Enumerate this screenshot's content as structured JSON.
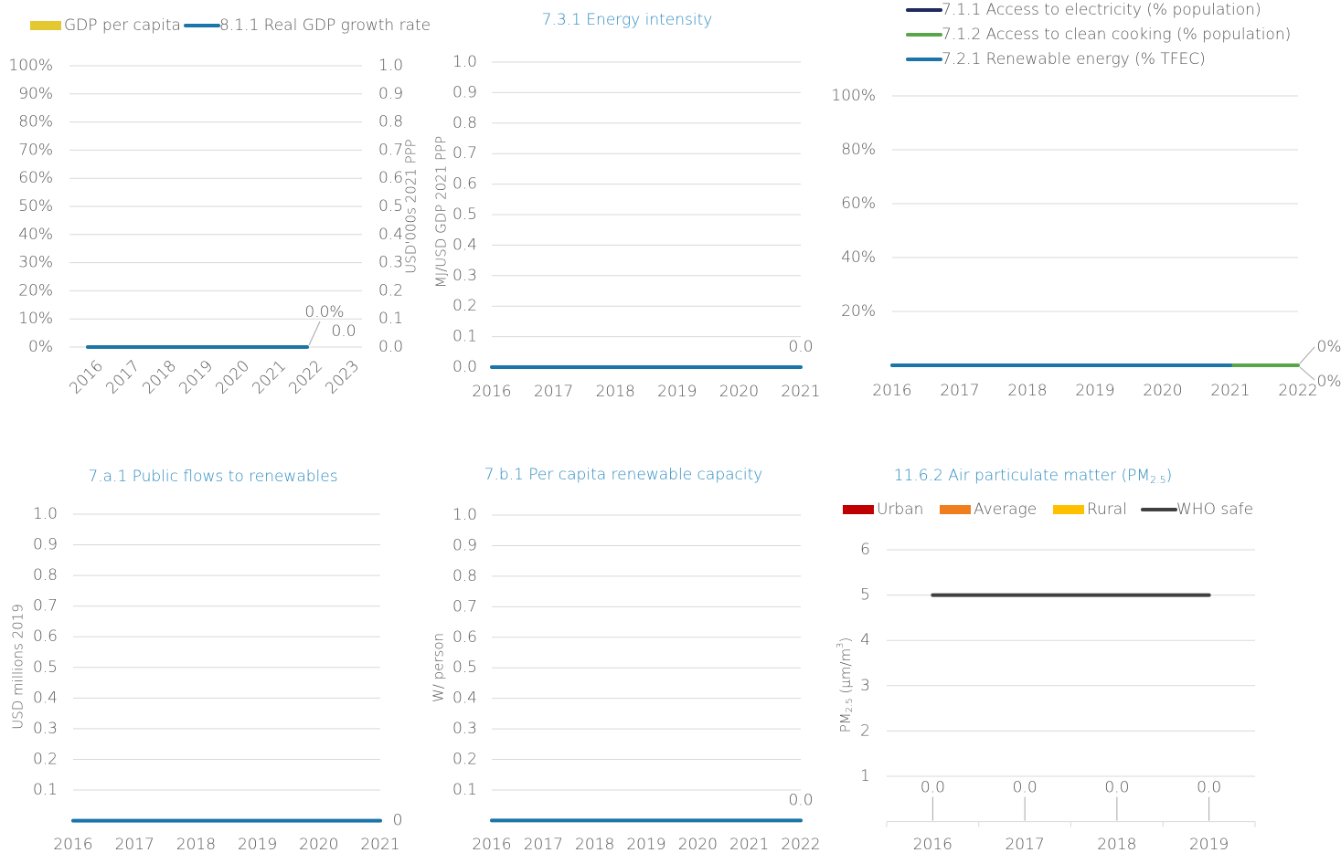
{
  "chart_data": [
    {
      "type": "combo",
      "categories": [
        "2016",
        "2017",
        "2018",
        "2019",
        "2020",
        "2021",
        "2022",
        "2023"
      ],
      "series": [
        {
          "name": "GDP per capita",
          "type": "bar",
          "axis": "y2",
          "color": "#e3c832",
          "values": [
            null,
            null,
            null,
            null,
            null,
            null,
            null,
            0
          ],
          "value_labels": [
            null,
            null,
            null,
            null,
            null,
            null,
            null,
            "0.0"
          ]
        },
        {
          "name": "8.1.1 Real GDP growth rate",
          "type": "line",
          "color": "#1b75a8",
          "values": [
            0,
            0,
            0,
            0,
            0,
            0,
            0,
            null
          ],
          "value_labels": [
            null,
            null,
            null,
            null,
            null,
            null,
            "0.0%",
            null
          ]
        }
      ],
      "ylim": [
        0,
        100
      ],
      "yticks": [
        {
          "value": 0,
          "label": "0%"
        },
        {
          "value": 10,
          "label": "10%"
        },
        {
          "value": 20,
          "label": "20%"
        },
        {
          "value": 30,
          "label": "30%"
        },
        {
          "value": 40,
          "label": "40%"
        },
        {
          "value": 50,
          "label": "50%"
        },
        {
          "value": 60,
          "label": "60%"
        },
        {
          "value": 70,
          "label": "70%"
        },
        {
          "value": 80,
          "label": "80%"
        },
        {
          "value": 90,
          "label": "90%"
        },
        {
          "value": 100,
          "label": "100%"
        }
      ],
      "y2lim": [
        0,
        1
      ],
      "y2ticks": [
        {
          "value": 0,
          "label": "0.0"
        },
        0.1,
        0.2,
        0.3,
        0.4,
        0.5,
        0.6,
        0.7,
        0.8,
        0.9,
        {
          "value": 1,
          "label": "1.0"
        }
      ],
      "y2label": "USD'000s 2021 PPP",
      "grid": true
    },
    {
      "type": "line",
      "title": "7.3.1 Energy intensity",
      "ylabel": "MJ/USD GDP 2021 PPP",
      "categories": [
        "2016",
        "2017",
        "2018",
        "2019",
        "2020",
        "2021"
      ],
      "series": [
        {
          "color": "#1b75a8",
          "values": [
            0,
            0,
            0,
            0,
            0,
            0
          ],
          "value_labels": [
            null,
            null,
            null,
            null,
            null,
            "0.0"
          ]
        }
      ],
      "ylim": [
        0,
        1
      ],
      "yticks": [
        {
          "value": 0,
          "label": "0.0"
        },
        0.1,
        0.2,
        0.3,
        0.4,
        0.5,
        0.6,
        0.7,
        0.8,
        0.9,
        {
          "value": 1,
          "label": "1.0"
        }
      ],
      "grid": true
    },
    {
      "type": "line",
      "categories": [
        "2016",
        "2017",
        "2018",
        "2019",
        "2020",
        "2021",
        "2022"
      ],
      "series": [
        {
          "name": "7.1.1 Access to electricity (% population)",
          "color": "#1f2a5e",
          "values": [
            null,
            null,
            null,
            null,
            null,
            null,
            0
          ],
          "value_labels": [
            null,
            null,
            null,
            null,
            null,
            null,
            "0%"
          ]
        },
        {
          "name": "7.1.2 Access to clean cooking (% population)",
          "color": "#5aa54b",
          "values": [
            null,
            null,
            null,
            null,
            null,
            0,
            0
          ],
          "value_labels": [
            null,
            null,
            null,
            null,
            null,
            null,
            "0%"
          ]
        },
        {
          "name": "7.2.1 Renewable energy (% TFEC)",
          "color": "#1b75a8",
          "values": [
            0,
            0,
            0,
            0,
            0,
            0,
            null
          ]
        }
      ],
      "ylim": [
        0,
        100
      ],
      "yticks": [
        {
          "value": 20,
          "label": "20%"
        },
        {
          "value": 40,
          "label": "40%"
        },
        {
          "value": 60,
          "label": "60%"
        },
        {
          "value": 80,
          "label": "80%"
        },
        {
          "value": 100,
          "label": "100%"
        }
      ],
      "grid": true
    },
    {
      "type": "line",
      "title": "7.a.1 Public flows to renewables",
      "ylabel": "USD millions 2019",
      "categories": [
        "2016",
        "2017",
        "2018",
        "2019",
        "2020",
        "2021"
      ],
      "series": [
        {
          "color": "#1b75a8",
          "values": [
            0,
            0,
            0,
            0,
            0,
            0
          ],
          "data_labels": "last"
        }
      ],
      "ylim": [
        0,
        1
      ],
      "yticks": [
        0.1,
        0.2,
        0.3,
        0.4,
        0.5,
        0.6,
        0.7,
        0.8,
        0.9,
        {
          "value": 1,
          "label": "1.0"
        }
      ],
      "grid": true
    },
    {
      "type": "line",
      "title": "7.b.1 Per capita renewable capacity",
      "ylabel": "W/ person",
      "categories": [
        "2016",
        "2017",
        "2018",
        "2019",
        "2020",
        "2021",
        "2022"
      ],
      "series": [
        {
          "color": "#1b75a8",
          "values": [
            0,
            0,
            0,
            0,
            0,
            0,
            0
          ],
          "value_labels": [
            null,
            null,
            null,
            null,
            null,
            null,
            "0.0"
          ]
        }
      ],
      "ylim": [
        0,
        1
      ],
      "yticks": [
        0.1,
        0.2,
        0.3,
        0.4,
        0.5,
        0.6,
        0.7,
        0.8,
        0.9,
        {
          "value": 1,
          "label": "1.0"
        }
      ],
      "grid": true
    },
    {
      "type": "combo",
      "title": [
        "11.6.2 Air particulate matter (PM",
        "2.5",
        ")"
      ],
      "ylabel": [
        "PM",
        "2.5",
        " (µm/m",
        "3",
        ")"
      ],
      "categories": [
        "2016",
        "2017",
        "2018",
        "2019"
      ],
      "series": [
        {
          "name": "Urban",
          "type": "bar",
          "color": "#c00000",
          "values": [
            null,
            null,
            null,
            null
          ]
        },
        {
          "name": "Average",
          "type": "bar",
          "color": "#f07e1e",
          "values": [
            0,
            0,
            0,
            0
          ],
          "value_labels": [
            "0.0",
            "0.0",
            "0.0",
            "0.0"
          ]
        },
        {
          "name": "Rural",
          "type": "bar",
          "color": "#ffc000",
          "values": [
            null,
            null,
            null,
            null
          ]
        },
        {
          "name": "WHO safe",
          "type": "line",
          "color": "#404040",
          "values": [
            5,
            5,
            5,
            5
          ]
        }
      ],
      "ylim": [
        0,
        6
      ],
      "yticks": [
        1,
        2,
        3,
        4,
        5,
        6
      ],
      "grid": true
    }
  ]
}
